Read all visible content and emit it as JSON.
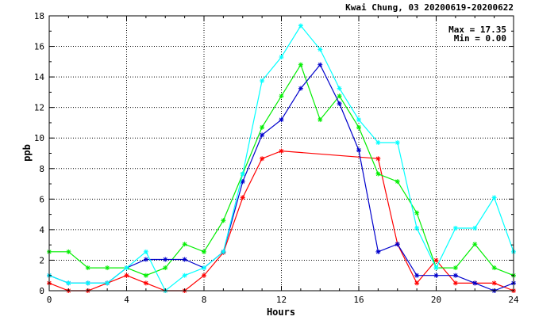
{
  "chart_data": {
    "type": "line",
    "title": "Kwai Chung, 03 20200619-20200622",
    "xlabel": "Hours",
    "ylabel": "ppb",
    "xlim": [
      0,
      24
    ],
    "ylim": [
      0,
      18
    ],
    "xticks": [
      0,
      4,
      8,
      12,
      16,
      20,
      24
    ],
    "yticks": [
      0,
      2,
      4,
      6,
      8,
      10,
      12,
      14,
      16,
      18
    ],
    "grid": true,
    "annotations": [
      "Max = 17.35",
      "Min =  0.00"
    ],
    "series": [
      {
        "color": "#ff0000",
        "points": [
          [
            0,
            0.5
          ],
          [
            1,
            0
          ],
          [
            2,
            0
          ],
          [
            3,
            0.5
          ],
          [
            4,
            1.0
          ],
          [
            5,
            0.5
          ],
          [
            6,
            0
          ],
          [
            7,
            0
          ],
          [
            8,
            1.0
          ],
          [
            9,
            2.5
          ],
          [
            10,
            6.1
          ],
          [
            11,
            8.65
          ],
          [
            12,
            9.15
          ],
          [
            17,
            8.65
          ],
          [
            18,
            3.05
          ],
          [
            19,
            0.5
          ],
          [
            20,
            2.0
          ],
          [
            21,
            0.5
          ],
          [
            22,
            0.5
          ],
          [
            23,
            0.5
          ],
          [
            24,
            0
          ]
        ]
      },
      {
        "color": "#00ee00",
        "points": [
          [
            0,
            2.55
          ],
          [
            1,
            2.55
          ],
          [
            2,
            1.5
          ],
          [
            3,
            1.5
          ],
          [
            4,
            1.5
          ],
          [
            5,
            1.0
          ],
          [
            6,
            1.5
          ],
          [
            7,
            3.05
          ],
          [
            8,
            2.55
          ],
          [
            9,
            4.6
          ],
          [
            10,
            7.65
          ],
          [
            11,
            10.7
          ],
          [
            12,
            12.75
          ],
          [
            13,
            14.8
          ],
          [
            14,
            11.2
          ],
          [
            15,
            12.75
          ],
          [
            16,
            10.7
          ],
          [
            17,
            7.65
          ],
          [
            18,
            7.15
          ],
          [
            19,
            5.1
          ],
          [
            20,
            1.5
          ],
          [
            21,
            1.5
          ],
          [
            22,
            3.05
          ],
          [
            23,
            1.5
          ],
          [
            24,
            1.0
          ]
        ]
      },
      {
        "color": "#0000cc",
        "points": [
          [
            0,
            1.0
          ],
          [
            1,
            0.5
          ],
          [
            2,
            0.5
          ],
          [
            3,
            0.5
          ],
          [
            4,
            1.5
          ],
          [
            5,
            2.05
          ],
          [
            6,
            2.05
          ],
          [
            7,
            2.05
          ],
          [
            8,
            1.5
          ],
          [
            9,
            2.55
          ],
          [
            10,
            7.15
          ],
          [
            11,
            10.2
          ],
          [
            12,
            11.2
          ],
          [
            13,
            13.25
          ],
          [
            14,
            14.8
          ],
          [
            15,
            12.25
          ],
          [
            16,
            9.2
          ],
          [
            17,
            2.55
          ],
          [
            18,
            3.05
          ],
          [
            19,
            1.0
          ],
          [
            20,
            1.0
          ],
          [
            21,
            1.0
          ],
          [
            22,
            0.5
          ],
          [
            23,
            0
          ],
          [
            24,
            0.5
          ]
        ]
      },
      {
        "color": "#00ffff",
        "points": [
          [
            0,
            1.0
          ],
          [
            1,
            0.5
          ],
          [
            2,
            0.5
          ],
          [
            3,
            0.5
          ],
          [
            4,
            1.5
          ],
          [
            5,
            2.55
          ],
          [
            6,
            0
          ],
          [
            7,
            1.0
          ],
          [
            8,
            1.5
          ],
          [
            9,
            2.55
          ],
          [
            10,
            7.65
          ],
          [
            11,
            13.75
          ],
          [
            12,
            15.3
          ],
          [
            13,
            17.35
          ],
          [
            14,
            15.8
          ],
          [
            15,
            13.25
          ],
          [
            16,
            11.2
          ],
          [
            17,
            9.7
          ],
          [
            18,
            9.7
          ],
          [
            19,
            4.1
          ],
          [
            20,
            1.5
          ],
          [
            21,
            4.1
          ],
          [
            22,
            4.1
          ],
          [
            23,
            6.1
          ],
          [
            24,
            2.55
          ]
        ]
      }
    ]
  }
}
